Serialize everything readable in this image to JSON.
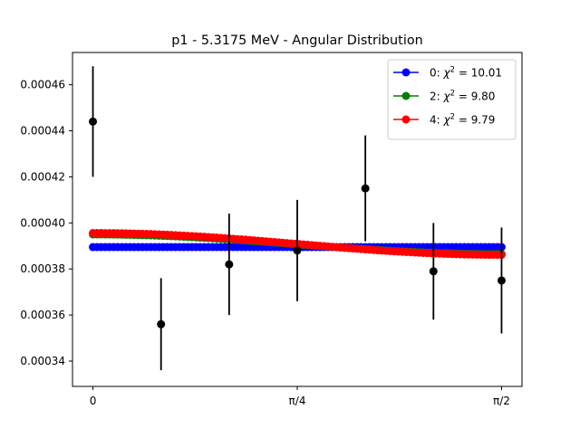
{
  "chart_data": {
    "type": "scatter",
    "title": "p1 - 5.3175 MeV - Angular Distribution",
    "xlabel": "",
    "ylabel": "",
    "xlim": [
      -0.0785,
      1.6493
    ],
    "ylim": [
      0.000329,
      0.000474
    ],
    "grid": false,
    "legend_position": "top-right",
    "x_ticks": [
      {
        "value": 0,
        "label": "0"
      },
      {
        "value": 0.7854,
        "label": "π/4"
      },
      {
        "value": 1.5708,
        "label": "π/2"
      }
    ],
    "y_ticks": [
      {
        "value": 0.00034,
        "label": "0.00034"
      },
      {
        "value": 0.00036,
        "label": "0.00036"
      },
      {
        "value": 0.00038,
        "label": "0.00038"
      },
      {
        "value": 0.0004,
        "label": "0.00040"
      },
      {
        "value": 0.00042,
        "label": "0.00042"
      },
      {
        "value": 0.00044,
        "label": "0.00044"
      },
      {
        "value": 0.00046,
        "label": "0.00046"
      }
    ],
    "data_points": {
      "color": "#000000",
      "x": [
        0,
        0.2618,
        0.5236,
        0.7854,
        1.0472,
        1.309,
        1.5708
      ],
      "y": [
        0.000444,
        0.000356,
        0.000382,
        0.000388,
        0.000415,
        0.000379,
        0.000375
      ],
      "yerr": [
        2.4e-05,
        2e-05,
        2.2e-05,
        2.2e-05,
        2.3e-05,
        2.1e-05,
        2.3e-05
      ]
    },
    "series": [
      {
        "legend_id": "0",
        "chi2": "10.01",
        "color": "#0000ff",
        "a0": 0.0003895,
        "a2": 0.0
      },
      {
        "legend_id": "2",
        "chi2": "9.80",
        "color": "#008000",
        "a0": 0.0003893,
        "a2": 5.7e-06
      },
      {
        "legend_id": "4",
        "chi2": "9.79",
        "color": "#ff0000",
        "a0": 0.0003893,
        "a2": 6.3e-06
      }
    ]
  }
}
